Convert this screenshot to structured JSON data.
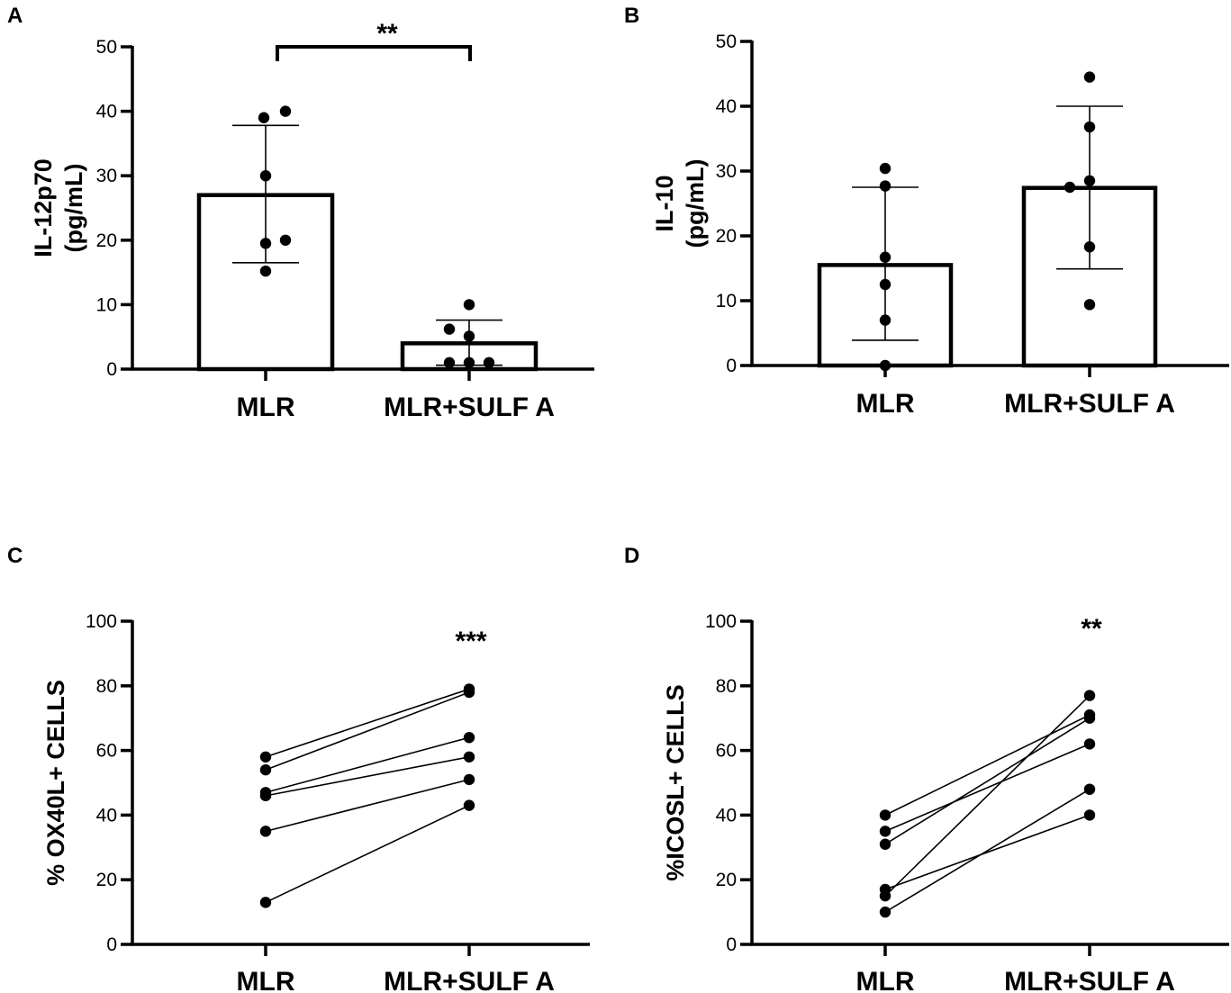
{
  "chart_data": [
    {
      "panel": "A",
      "type": "bar",
      "ylabel_lines": [
        "IL-12p70",
        "(pg/mL)"
      ],
      "categories": [
        "MLR",
        "MLR+SULF A"
      ],
      "ylim": [
        0,
        50
      ],
      "yticks": [
        0,
        10,
        20,
        30,
        40,
        50
      ],
      "means": [
        27,
        4
      ],
      "errors": [
        [
          16.5,
          37.8
        ],
        [
          0.6,
          7.6
        ]
      ],
      "points": [
        [
          40,
          39,
          30,
          20,
          19.5,
          15.2
        ],
        [
          10,
          6.2,
          5.1,
          1,
          1,
          1
        ]
      ],
      "significance": "**",
      "bracket": true
    },
    {
      "panel": "B",
      "type": "bar",
      "ylabel_lines": [
        "IL-10",
        "(pg/mL)"
      ],
      "categories": [
        "MLR",
        "MLR+SULF A"
      ],
      "ylim": [
        0,
        50
      ],
      "yticks": [
        0,
        10,
        20,
        30,
        40,
        50
      ],
      "means": [
        15.5,
        27.4
      ],
      "errors": [
        [
          3.9,
          27.5
        ],
        [
          14.9,
          40
        ]
      ],
      "points": [
        [
          30.4,
          27.7,
          16.7,
          12.5,
          7,
          0
        ],
        [
          44.5,
          36.8,
          28.5,
          27.5,
          18.3,
          9.4
        ]
      ],
      "significance": "",
      "bracket": false
    },
    {
      "panel": "C",
      "type": "line",
      "ylabel_lines": [
        "% OX40L+ CELLS"
      ],
      "categories": [
        "MLR",
        "MLR+SULF A"
      ],
      "ylim": [
        0,
        100
      ],
      "yticks": [
        0,
        20,
        40,
        60,
        80,
        100
      ],
      "pairs": [
        [
          58,
          79
        ],
        [
          54,
          78
        ],
        [
          47,
          64
        ],
        [
          46,
          58
        ],
        [
          35,
          51
        ],
        [
          13,
          43
        ]
      ],
      "significance": "***",
      "bracket": false
    },
    {
      "panel": "D",
      "type": "line",
      "ylabel_lines": [
        "%ICOSL+ CELLS"
      ],
      "categories": [
        "MLR",
        "MLR+SULF A"
      ],
      "ylim": [
        0,
        100
      ],
      "yticks": [
        0,
        20,
        40,
        60,
        80,
        100
      ],
      "pairs": [
        [
          40,
          71
        ],
        [
          35,
          62
        ],
        [
          31,
          70
        ],
        [
          17,
          40
        ],
        [
          15,
          77
        ],
        [
          10,
          48
        ]
      ],
      "significance": "**",
      "bracket": false
    }
  ]
}
